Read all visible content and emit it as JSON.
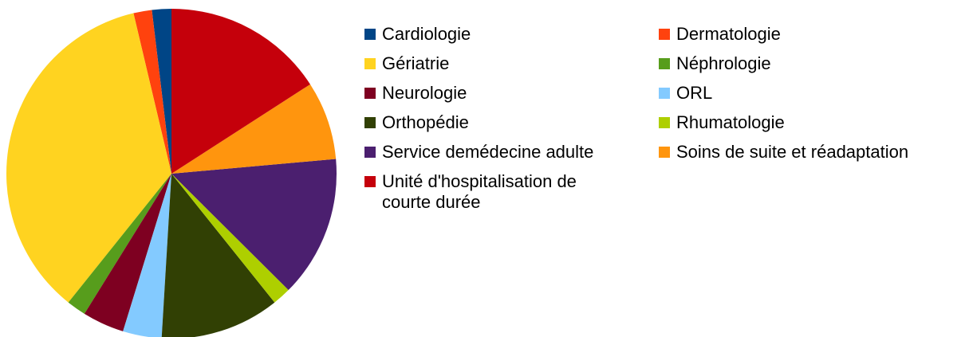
{
  "chart_data": {
    "type": "pie",
    "categories": [
      "Cardiologie",
      "Dermatologie",
      "Gériatrie",
      "Néphrologie",
      "Neurologie",
      "ORL",
      "Orthopédie",
      "Rhumatologie",
      "Service demédecine adulte",
      "Soins de suite et réadaptation",
      "Unité d'hospitalisation de courte durée"
    ],
    "values": [
      1.9,
      1.8,
      35.6,
      1.9,
      4.1,
      3.8,
      11.7,
      1.8,
      13.9,
      7.7,
      15.9
    ],
    "colors": [
      "#004586",
      "#ff420e",
      "#ffd320",
      "#579d1c",
      "#7e0021",
      "#83caff",
      "#314004",
      "#aecf00",
      "#4b1f6f",
      "#ff950e",
      "#c5000b"
    ],
    "direction": "counterclockwise",
    "legend": "right"
  }
}
